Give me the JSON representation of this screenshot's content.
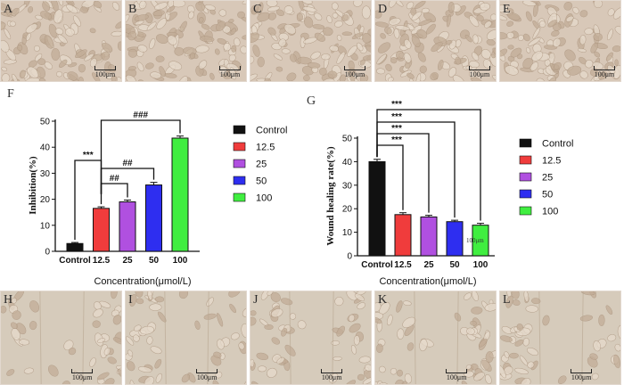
{
  "top_panels": [
    {
      "label": "A",
      "scale": "100μm"
    },
    {
      "label": "B",
      "scale": "100μm"
    },
    {
      "label": "C",
      "scale": "100μm"
    },
    {
      "label": "D",
      "scale": "100μm"
    },
    {
      "label": "E",
      "scale": "100μm"
    }
  ],
  "bottom_panels": [
    {
      "label": "H",
      "scale": "100μm"
    },
    {
      "label": "I",
      "scale": "100μm"
    },
    {
      "label": "J",
      "scale": "100μm"
    },
    {
      "label": "K",
      "scale": "100μm"
    },
    {
      "label": "L",
      "scale": "100μm"
    }
  ],
  "figure_labels": {
    "f": "F",
    "g": "G"
  },
  "colors": {
    "control": "#111111",
    "c12_5": "#f03c3c",
    "c25": "#b050e0",
    "c50": "#2e2ef0",
    "c100": "#40ee40",
    "micrograph_bg": "#d8c8b8"
  },
  "chart_data": [
    {
      "type": "bar",
      "categories": [
        "Control",
        "12.5",
        "25",
        "50",
        "100"
      ],
      "values": [
        3,
        16.5,
        19,
        25.5,
        43.5
      ],
      "errors": [
        0.4,
        0.6,
        0.7,
        1.0,
        0.8
      ],
      "xlabel": "Concentration(μmol/L)",
      "ylabel": "Inhibition(%)",
      "ylim": [
        0,
        50
      ],
      "yticks": [
        "0",
        "10",
        "20",
        "30",
        "40",
        "50"
      ],
      "legend": [
        "Control",
        "12.5",
        "25",
        "50",
        "100"
      ],
      "annotations": [
        {
          "text": "***",
          "from": 0,
          "to": 1
        },
        {
          "text": "##",
          "from": 1,
          "to": 2
        },
        {
          "text": "##",
          "from": 1,
          "to": 3
        },
        {
          "text": "###",
          "from": 1,
          "to": 4
        }
      ]
    },
    {
      "type": "bar",
      "categories": [
        "Control",
        "12.5",
        "25",
        "50",
        "100"
      ],
      "values": [
        40,
        17.5,
        16.5,
        14.5,
        13
      ],
      "errors": [
        1.0,
        0.8,
        0.7,
        0.6,
        0.8
      ],
      "xlabel": "Concentration(μmol/L)",
      "ylabel": "Wound healing rate(%)",
      "ylim": [
        0,
        50
      ],
      "yticks": [
        "0",
        "10",
        "20",
        "30",
        "40",
        "50"
      ],
      "legend": [
        "Control",
        "12.5",
        "25",
        "50",
        "100"
      ],
      "annotations": [
        {
          "text": "***",
          "from": 0,
          "to": 1
        },
        {
          "text": "***",
          "from": 0,
          "to": 2
        },
        {
          "text": "***",
          "from": 0,
          "to": 3
        },
        {
          "text": "***",
          "from": 0,
          "to": 4
        }
      ],
      "inset_scale": "100μm"
    }
  ]
}
